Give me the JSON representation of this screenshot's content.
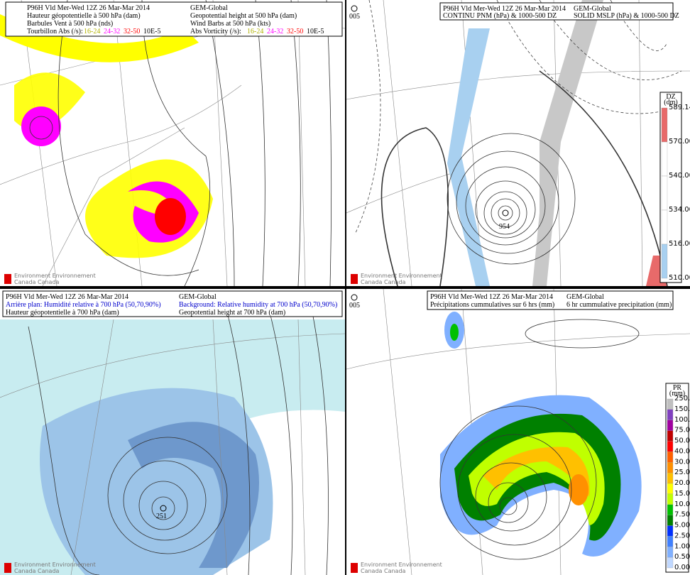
{
  "panels": [
    {
      "header": [
        [
          "P96H Vld Mer-Wed 12Z 26 Mar-Mar 2014",
          "GEM-Global"
        ],
        [
          "Hauteur géopotentielle à 500 hPa (dam)",
          "Geopotential height at 500 hPa (dam)"
        ],
        [
          "Barbules Vent à 500 hPa (nds)",
          "Wind Barbs at 500 hPa (kts)"
        ]
      ],
      "legend": {
        "fr": "Tourbillon Abs (/s):",
        "en": "Abs Vorticity (/s):",
        "unit": "10E-5",
        "classes": [
          {
            "label": "16-24",
            "color": "#b0b000"
          },
          {
            "label": "24-32",
            "color": "#ff00ff"
          },
          {
            "label": "32-50",
            "color": "#ff0000"
          }
        ]
      }
    },
    {
      "header": [
        [
          "P96H Vld Mer-Wed 12Z 26 Mar-Mar 2014",
          "GEM-Global"
        ],
        [
          "CONTINU PNM (hPa) & 1000-500 DZ",
          "SOLID  MSLP (hPa) & 1000-500 DZ"
        ]
      ],
      "station": "005",
      "center_label": "954",
      "colorbar": {
        "title": [
          "DZ",
          "(dm)"
        ],
        "labels": [
          "589.14",
          "570.00",
          "540.00",
          "534.00",
          "516.00",
          "510.00"
        ],
        "colors": [
          "#e86a6a",
          "#ffffff",
          "#ffffff",
          "#ffffff",
          "#a8d0f0"
        ]
      }
    },
    {
      "header": [
        [
          "P96H Vld Mer-Wed 12Z 26 Mar-Mar 2014",
          "GEM-Global"
        ],
        [
          "Arrière plan: Humidité relative à 700 hPa (50,70,90%)",
          "Background: Relative humidity at 700 hPa (50,70,90%)"
        ],
        [
          "Hauteur géopotentielle à 700 hPa (dam)",
          "Geopotential height at 700 hPa (dam)"
        ]
      ],
      "center_label": "251"
    },
    {
      "header": [
        [
          "P96H Vld Mer-Wed 12Z 26 Mar-Mar 2014",
          "GEM-Global"
        ],
        [
          "Précipitations cummulatives sur 6 hrs (mm)",
          "6 hr cummulative precipitation     (mm)"
        ]
      ],
      "station": "005",
      "colorbar": {
        "title": [
          "PR",
          "(mm)"
        ],
        "labels": [
          "250.00",
          "150.00",
          "100.00",
          "75.00",
          "50.00",
          "40.00",
          "30.00",
          "25.00",
          "20.00",
          "15.00",
          "10.00",
          "7.50",
          "5.00",
          "2.50",
          "1.00",
          "0.50",
          "0.00"
        ],
        "colors": [
          "#c0c0c0",
          "#8040c0",
          "#a000a0",
          "#c00000",
          "#ff0000",
          "#ff6000",
          "#ff9000",
          "#ffc000",
          "#ffff00",
          "#c0ff00",
          "#00c000",
          "#008000",
          "#0030ff",
          "#4080ff",
          "#80b0ff",
          "#c0d8ff"
        ]
      }
    }
  ],
  "footer": [
    "Environment Environnement",
    "Canada        Canada"
  ]
}
